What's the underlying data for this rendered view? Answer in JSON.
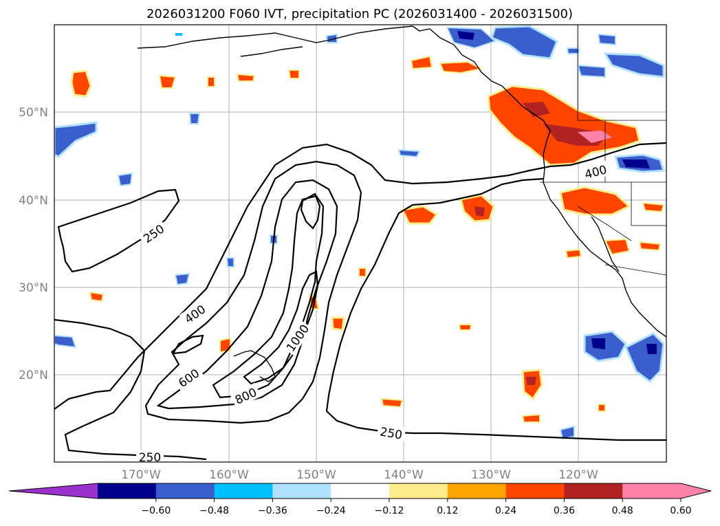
{
  "title": "2026031200 F060 IVT, precipitation PC (2026031400 - 2026031500)",
  "lon_ticks": [
    "170°W",
    "160°W",
    "150°W",
    "140°W",
    "130°W",
    "120°W"
  ],
  "lat_ticks": [
    "50°N",
    "40°N",
    "30°N",
    "20°N"
  ],
  "ivt_labels": [
    "250",
    "400",
    "600",
    "800",
    "1000",
    "400",
    "250",
    "250"
  ],
  "colorbar": {
    "ticks": [
      "−0.60",
      "−0.48",
      "−0.36",
      "−0.24",
      "−0.12",
      "0.12",
      "0.24",
      "0.36",
      "0.48",
      "0.60"
    ],
    "colors": [
      "#9932cc",
      "#00008b",
      "#3a5fcd",
      "#00bfff",
      "#b0e2ff",
      "#ffffff",
      "#ffec8b",
      "#ffa500",
      "#ff4500",
      "#b22222",
      "#ff82ab",
      "#ff82ab"
    ]
  }
}
